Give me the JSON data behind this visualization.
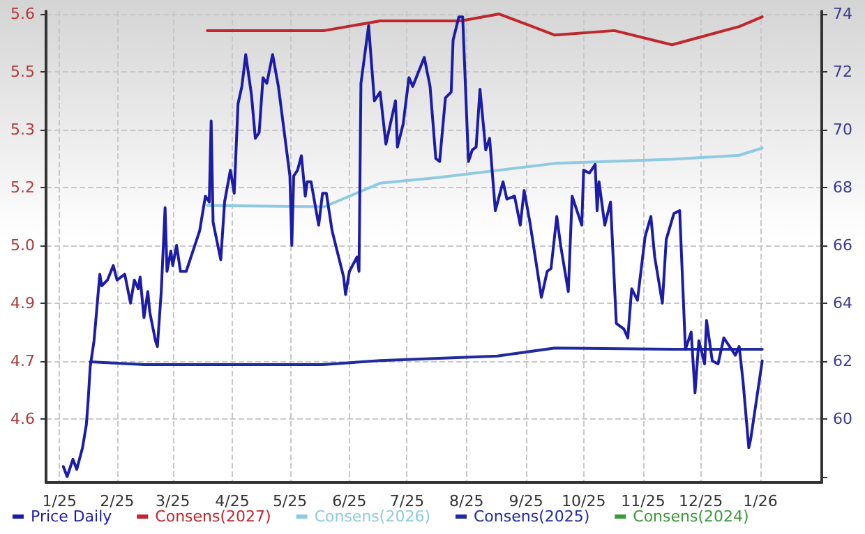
{
  "chart_data": {
    "type": "line",
    "legend": "bottom left",
    "grid": true,
    "marker": "none",
    "line_style": "solid",
    "xlim": [
      "2025-01-09",
      "2026-02-17"
    ],
    "xticks": [
      {
        "value": "2025-01-16",
        "label": "1/25"
      },
      {
        "value": "2025-02-15",
        "label": "2/25"
      },
      {
        "value": "2025-03-16",
        "label": "3/25"
      },
      {
        "value": "2025-04-16",
        "label": "4/25"
      },
      {
        "value": "2025-05-16",
        "label": "5/25"
      },
      {
        "value": "2025-06-16",
        "label": "6/25"
      },
      {
        "value": "2025-07-16",
        "label": "7/25"
      },
      {
        "value": "2025-08-16",
        "label": "8/25"
      },
      {
        "value": "2025-09-16",
        "label": "9/25"
      },
      {
        "value": "2025-10-16",
        "label": "10/25"
      },
      {
        "value": "2025-11-16",
        "label": "11/25"
      },
      {
        "value": "2025-12-16",
        "label": "12/25"
      },
      {
        "value": "2026-01-16",
        "label": "1/26"
      }
    ],
    "ylim": [
      4.443,
      5.607
    ],
    "yticks": [
      {
        "value": 4.6,
        "label": "4.6"
      },
      {
        "value": 4.743,
        "label": "4.7"
      },
      {
        "value": 4.886,
        "label": "4.9"
      },
      {
        "value": 5.029,
        "label": "5.0"
      },
      {
        "value": 5.171,
        "label": "5.2"
      },
      {
        "value": 5.314,
        "label": "5.3"
      },
      {
        "value": 5.457,
        "label": "5.5"
      },
      {
        "value": 5.6,
        "label": "5.6"
      }
    ],
    "y2lim": [
      57.8,
      74.1
    ],
    "y2ticks": [
      {
        "value": 58,
        "label": null
      },
      60,
      62,
      64,
      66,
      68,
      70,
      72,
      74
    ],
    "series": [
      {
        "name": "Price Daily",
        "color": "#1c1ca6",
        "axis": "y2",
        "x": [
          "2025-01-18",
          "2025-01-20",
          "2025-01-23",
          "2025-01-25",
          "2025-01-28",
          "2025-01-30",
          "2025-01-31",
          "2025-02-01",
          "2025-02-03",
          "2025-02-06",
          "2025-02-07",
          "2025-02-10",
          "2025-02-13",
          "2025-02-15",
          "2025-02-19",
          "2025-02-22",
          "2025-02-24",
          "2025-02-26",
          "2025-02-27",
          "2025-03-01",
          "2025-03-03",
          "2025-03-04",
          "2025-03-07",
          "2025-03-08",
          "2025-03-10",
          "2025-03-12",
          "2025-03-13",
          "2025-03-15",
          "2025-03-16",
          "2025-03-18",
          "2025-03-20",
          "2025-03-23",
          "2025-03-26",
          "2025-03-30",
          "2025-04-02",
          "2025-04-04",
          "2025-04-05",
          "2025-04-06",
          "2025-04-10",
          "2025-04-12",
          "2025-04-15",
          "2025-04-17",
          "2025-04-19",
          "2025-04-21",
          "2025-04-23",
          "2025-04-26",
          "2025-04-28",
          "2025-04-30",
          "2025-05-02",
          "2025-05-04",
          "2025-05-07",
          "2025-05-10",
          "2025-05-16",
          "2025-05-17",
          "2025-05-18",
          "2025-05-20",
          "2025-05-22",
          "2025-05-24",
          "2025-05-25",
          "2025-05-27",
          "2025-05-31",
          "2025-06-02",
          "2025-06-04",
          "2025-06-07",
          "2025-06-13",
          "2025-06-14",
          "2025-06-16",
          "2025-06-20",
          "2025-06-21",
          "2025-06-22",
          "2025-06-26",
          "2025-06-29",
          "2025-07-02",
          "2025-07-05",
          "2025-07-10",
          "2025-07-11",
          "2025-07-14",
          "2025-07-17",
          "2025-07-19",
          "2025-07-25",
          "2025-07-28",
          "2025-07-31",
          "2025-08-02",
          "2025-08-05",
          "2025-08-08",
          "2025-08-09",
          "2025-08-12",
          "2025-08-14",
          "2025-08-17",
          "2025-08-19",
          "2025-08-21",
          "2025-08-23",
          "2025-08-26",
          "2025-08-28",
          "2025-08-31",
          "2025-09-04",
          "2025-09-06",
          "2025-09-10",
          "2025-09-13",
          "2025-09-15",
          "2025-09-18",
          "2025-09-24",
          "2025-09-27",
          "2025-09-29",
          "2025-10-02",
          "2025-10-04",
          "2025-10-08",
          "2025-10-10",
          "2025-10-15",
          "2025-10-16",
          "2025-10-19",
          "2025-10-22",
          "2025-10-23",
          "2025-10-24",
          "2025-10-27",
          "2025-10-30",
          "2025-11-02",
          "2025-11-06",
          "2025-11-08",
          "2025-11-10",
          "2025-11-13",
          "2025-11-17",
          "2025-11-20",
          "2025-11-22",
          "2025-11-26",
          "2025-11-28",
          "2025-12-02",
          "2025-12-05",
          "2025-12-08",
          "2025-12-11",
          "2025-12-13",
          "2025-12-15",
          "2025-12-18",
          "2025-12-19",
          "2025-12-22",
          "2025-12-25",
          "2025-12-28",
          "2026-01-03",
          "2026-01-05",
          "2026-01-07",
          "2026-01-10",
          "2026-01-11",
          "2026-01-17"
        ],
        "values": [
          58.35,
          58.0,
          58.6,
          58.25,
          59.0,
          59.8,
          60.7,
          61.8,
          62.7,
          65.0,
          64.6,
          64.8,
          65.3,
          64.8,
          65.0,
          64.0,
          64.8,
          64.5,
          64.9,
          63.5,
          64.4,
          63.7,
          62.7,
          62.5,
          64.4,
          67.3,
          65.1,
          65.8,
          65.3,
          66.0,
          65.1,
          65.1,
          65.7,
          66.5,
          67.7,
          67.5,
          70.3,
          66.8,
          65.5,
          67.5,
          68.6,
          67.8,
          70.9,
          71.5,
          72.6,
          71.2,
          69.7,
          69.9,
          71.8,
          71.6,
          72.6,
          71.5,
          68.4,
          66.0,
          68.4,
          68.6,
          69.1,
          67.7,
          68.2,
          68.2,
          66.7,
          67.8,
          67.8,
          66.5,
          64.9,
          64.3,
          65.1,
          65.6,
          65.1,
          71.6,
          73.6,
          71.0,
          71.3,
          69.5,
          71.0,
          69.4,
          70.2,
          71.8,
          71.5,
          72.5,
          71.5,
          69.0,
          68.9,
          71.1,
          71.3,
          73.1,
          73.9,
          73.9,
          68.9,
          69.3,
          69.4,
          71.4,
          69.3,
          69.7,
          67.2,
          68.2,
          67.6,
          67.7,
          66.7,
          67.9,
          66.8,
          64.2,
          65.1,
          65.2,
          67.0,
          66.0,
          64.4,
          67.7,
          66.7,
          68.6,
          68.5,
          68.8,
          67.2,
          68.2,
          66.7,
          67.5,
          63.3,
          63.1,
          62.8,
          64.5,
          64.1,
          66.3,
          67.0,
          65.6,
          64.0,
          66.2,
          67.1,
          67.2,
          62.4,
          63.0,
          60.9,
          62.7,
          61.9,
          63.4,
          62.0,
          61.9,
          62.8,
          62.2,
          62.5,
          61.3,
          59.0,
          59.3,
          62.0
        ]
      },
      {
        "name": "Consens(2027)",
        "color": "#c0272d",
        "x": [
          "2025-04-03",
          "2025-06-03",
          "2025-07-02",
          "2025-08-13",
          "2025-09-02",
          "2025-10-01",
          "2025-11-01",
          "2025-12-01",
          "2026-01-05",
          "2026-01-17"
        ],
        "values": [
          5.559,
          5.559,
          5.583,
          5.583,
          5.6,
          5.548,
          5.559,
          5.524,
          5.569,
          5.593
        ]
      },
      {
        "name": "Consens(2026)",
        "color": "#8ecae2",
        "x": [
          "2025-04-03",
          "2025-06-03",
          "2025-07-02",
          "2025-08-01",
          "2025-10-01",
          "2025-12-01",
          "2026-01-05",
          "2026-01-17"
        ],
        "values": [
          5.127,
          5.124,
          5.182,
          5.196,
          5.231,
          5.241,
          5.251,
          5.269
        ]
      },
      {
        "name": "Consens(2025)",
        "color": "#1f2b9e",
        "x": [
          "2025-02-01",
          "2025-03-01",
          "2025-06-02",
          "2025-07-02",
          "2025-09-01",
          "2025-10-01",
          "2025-12-01",
          "2026-01-17"
        ],
        "values": [
          4.741,
          4.734,
          4.734,
          4.744,
          4.755,
          4.775,
          4.772,
          4.772
        ]
      },
      {
        "name": "Consens(2024)",
        "color": "#3a9a3a"
      }
    ]
  }
}
